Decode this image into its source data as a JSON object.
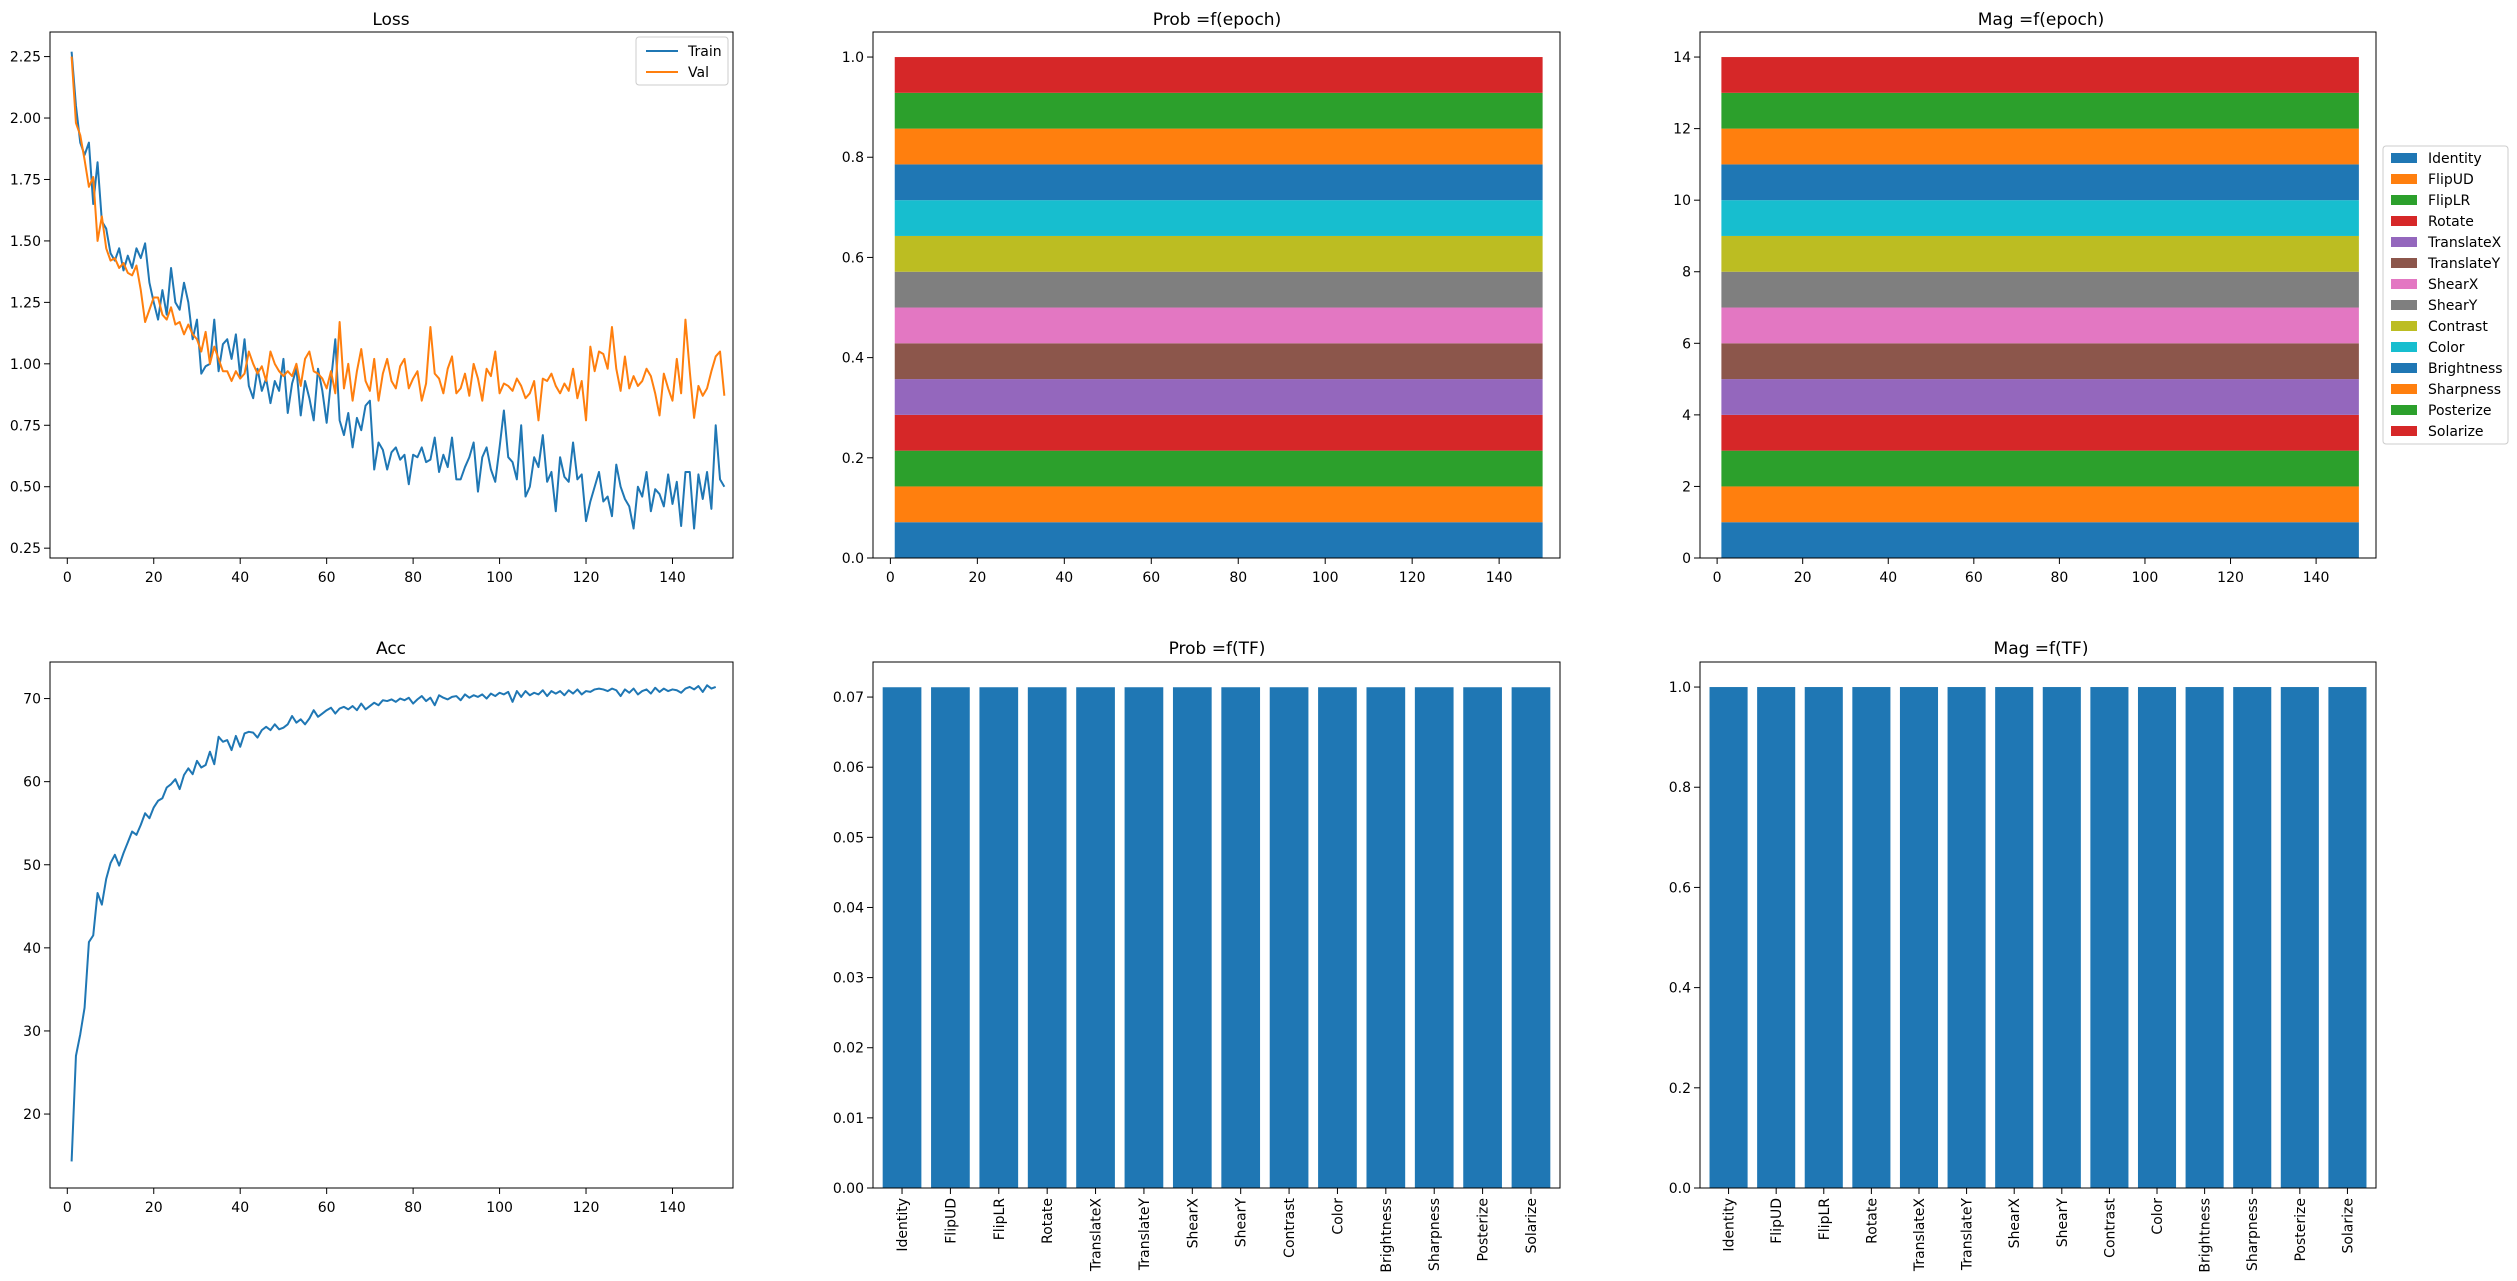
{
  "palette": [
    "#1f77b4",
    "#ff7f0e",
    "#2ca02c",
    "#d62728",
    "#9467bd",
    "#8c564b",
    "#e377c2",
    "#7f7f7f",
    "#bcbd22",
    "#17becf"
  ],
  "transforms": [
    "Identity",
    "FlipUD",
    "FlipLR",
    "Rotate",
    "TranslateX",
    "TranslateY",
    "ShearX",
    "ShearY",
    "Contrast",
    "Color",
    "Brightness",
    "Sharpness",
    "Posterize",
    "Solarize"
  ],
  "chart_data": [
    {
      "id": "loss",
      "type": "line",
      "title": "Loss",
      "xlim": [
        -4,
        154
      ],
      "ylim": [
        0.21,
        2.35
      ],
      "xticks": [
        0,
        20,
        40,
        60,
        80,
        100,
        120,
        140
      ],
      "yticks": [
        0.25,
        0.5,
        0.75,
        1.0,
        1.25,
        1.5,
        1.75,
        2.0,
        2.25
      ],
      "ytick_labels": [
        "0.25",
        "0.50",
        "0.75",
        "1.00",
        "1.25",
        "1.50",
        "1.75",
        "2.00",
        "2.25"
      ],
      "legend": {
        "position": "upper right"
      },
      "series": [
        {
          "name": "Train",
          "color": "#1f77b4",
          "x_start": 1,
          "x_step": 1,
          "values": [
            2.27,
            2.05,
            1.9,
            1.85,
            1.9,
            1.65,
            1.82,
            1.58,
            1.55,
            1.45,
            1.42,
            1.47,
            1.38,
            1.44,
            1.39,
            1.47,
            1.43,
            1.49,
            1.33,
            1.25,
            1.18,
            1.3,
            1.2,
            1.39,
            1.25,
            1.22,
            1.33,
            1.25,
            1.1,
            1.18,
            0.96,
            0.99,
            1.0,
            1.18,
            0.97,
            1.08,
            1.1,
            1.02,
            1.12,
            0.95,
            1.1,
            0.91,
            0.86,
            0.98,
            0.89,
            0.94,
            0.84,
            0.93,
            0.89,
            1.02,
            0.8,
            0.92,
            0.98,
            0.79,
            0.93,
            0.86,
            0.77,
            0.98,
            0.89,
            0.76,
            0.93,
            1.1,
            0.77,
            0.71,
            0.8,
            0.66,
            0.78,
            0.73,
            0.83,
            0.85,
            0.57,
            0.68,
            0.65,
            0.57,
            0.64,
            0.66,
            0.61,
            0.63,
            0.51,
            0.63,
            0.62,
            0.66,
            0.6,
            0.61,
            0.7,
            0.56,
            0.63,
            0.58,
            0.7,
            0.53,
            0.53,
            0.58,
            0.62,
            0.68,
            0.48,
            0.62,
            0.66,
            0.57,
            0.52,
            0.66,
            0.81,
            0.62,
            0.6,
            0.53,
            0.75,
            0.46,
            0.5,
            0.62,
            0.58,
            0.71,
            0.52,
            0.56,
            0.4,
            0.62,
            0.54,
            0.52,
            0.68,
            0.53,
            0.55,
            0.36,
            0.44,
            0.5,
            0.56,
            0.44,
            0.46,
            0.38,
            0.59,
            0.5,
            0.45,
            0.42,
            0.33,
            0.5,
            0.46,
            0.56,
            0.4,
            0.49,
            0.47,
            0.42,
            0.55,
            0.43,
            0.52,
            0.34,
            0.56,
            0.56,
            0.33,
            0.55,
            0.45,
            0.56,
            0.41,
            0.75,
            0.53,
            0.5
          ]
        },
        {
          "name": "Val",
          "color": "#ff7f0e",
          "x_start": 1,
          "x_step": 1,
          "values": [
            2.25,
            1.98,
            1.93,
            1.83,
            1.72,
            1.76,
            1.5,
            1.6,
            1.47,
            1.42,
            1.43,
            1.39,
            1.41,
            1.37,
            1.36,
            1.4,
            1.3,
            1.17,
            1.22,
            1.27,
            1.27,
            1.2,
            1.18,
            1.23,
            1.16,
            1.17,
            1.12,
            1.16,
            1.12,
            1.1,
            1.05,
            1.13,
            1.0,
            1.07,
            1.02,
            0.97,
            0.97,
            0.93,
            0.97,
            0.94,
            0.96,
            1.05,
            1.0,
            0.96,
            0.99,
            0.93,
            1.05,
            1.0,
            0.97,
            0.95,
            0.97,
            0.95,
            1.0,
            0.91,
            1.02,
            1.05,
            0.97,
            0.96,
            0.94,
            0.9,
            0.97,
            0.88,
            1.17,
            0.9,
            1.0,
            0.85,
            0.97,
            1.06,
            0.93,
            0.89,
            1.02,
            0.85,
            0.96,
            1.02,
            0.93,
            0.9,
            0.99,
            1.02,
            0.9,
            0.94,
            0.97,
            0.85,
            0.92,
            1.15,
            0.96,
            0.94,
            0.88,
            0.98,
            1.03,
            0.88,
            0.9,
            0.96,
            0.87,
            1.0,
            0.94,
            0.85,
            0.98,
            0.95,
            1.05,
            0.88,
            0.92,
            0.91,
            0.89,
            0.94,
            0.91,
            0.86,
            0.88,
            0.93,
            0.77,
            0.94,
            0.93,
            0.96,
            0.91,
            0.88,
            0.92,
            0.89,
            0.98,
            0.86,
            0.93,
            0.77,
            1.07,
            0.97,
            1.05,
            1.04,
            0.98,
            1.15,
            0.98,
            0.89,
            1.03,
            0.9,
            0.95,
            0.91,
            0.93,
            0.98,
            0.95,
            0.88,
            0.79,
            0.96,
            0.9,
            0.85,
            1.02,
            0.88,
            1.18,
            0.97,
            0.78,
            0.91,
            0.87,
            0.9,
            0.97,
            1.03,
            1.05,
            0.87
          ]
        }
      ]
    },
    {
      "id": "prob_epoch",
      "type": "area",
      "title": "Prob =f(epoch)",
      "xlim": [
        -4,
        154
      ],
      "ylim": [
        0.0,
        1.05
      ],
      "xticks": [
        0,
        20,
        40,
        60,
        80,
        100,
        120,
        140
      ],
      "yticks": [
        0.0,
        0.2,
        0.4,
        0.6,
        0.8,
        1.0
      ],
      "ytick_labels": [
        "0.0",
        "0.2",
        "0.4",
        "0.6",
        "0.8",
        "1.0"
      ],
      "x_range": [
        1,
        150
      ],
      "layer_value": 0.07142857,
      "layers": 14
    },
    {
      "id": "mag_epoch",
      "type": "area",
      "title": "Mag =f(epoch)",
      "xlim": [
        -4,
        154
      ],
      "ylim": [
        0,
        14.7
      ],
      "xticks": [
        0,
        20,
        40,
        60,
        80,
        100,
        120,
        140
      ],
      "yticks": [
        0,
        2,
        4,
        6,
        8,
        10,
        12,
        14
      ],
      "ytick_labels": [
        "0",
        "2",
        "4",
        "6",
        "8",
        "10",
        "12",
        "14"
      ],
      "x_range": [
        1,
        150
      ],
      "layer_value": 1,
      "layers": 14,
      "legend": {
        "position": "outside right"
      }
    },
    {
      "id": "acc",
      "type": "line",
      "title": "Acc",
      "xlim": [
        -4,
        154
      ],
      "ylim": [
        11.1,
        74.4
      ],
      "xticks": [
        0,
        20,
        40,
        60,
        80,
        100,
        120,
        140
      ],
      "yticks": [
        20,
        30,
        40,
        50,
        60,
        70
      ],
      "ytick_labels": [
        "20",
        "30",
        "40",
        "50",
        "60",
        "70"
      ],
      "series": [
        {
          "color": "#1f77b4",
          "x_start": 1,
          "x_step": 1,
          "values": [
            14.3,
            27.0,
            29.6,
            32.8,
            40.7,
            41.5,
            46.6,
            45.2,
            48.3,
            50.2,
            51.2,
            49.9,
            51.4,
            52.7,
            54.0,
            53.6,
            54.8,
            56.2,
            55.6,
            56.9,
            57.7,
            58.0,
            59.3,
            59.7,
            60.3,
            59.1,
            60.8,
            61.6,
            60.9,
            62.5,
            61.7,
            62.0,
            63.6,
            62.1,
            65.4,
            64.8,
            65.0,
            63.8,
            65.5,
            64.2,
            65.8,
            66.0,
            65.9,
            65.3,
            66.2,
            66.6,
            66.2,
            66.9,
            66.3,
            66.5,
            66.9,
            67.9,
            67.1,
            67.5,
            66.9,
            67.6,
            68.6,
            67.8,
            68.2,
            68.6,
            68.9,
            68.2,
            68.8,
            69.0,
            68.7,
            69.1,
            68.6,
            69.4,
            68.7,
            69.1,
            69.5,
            69.2,
            69.8,
            69.7,
            69.9,
            69.6,
            70.0,
            69.8,
            70.1,
            69.4,
            69.9,
            70.3,
            69.7,
            70.1,
            69.2,
            70.4,
            70.1,
            69.9,
            70.2,
            70.3,
            69.8,
            70.5,
            70.1,
            70.4,
            70.2,
            70.5,
            70.0,
            70.6,
            70.3,
            70.7,
            70.5,
            70.8,
            69.6,
            70.9,
            70.2,
            70.9,
            70.4,
            70.7,
            70.5,
            71.0,
            70.3,
            70.9,
            70.6,
            70.9,
            70.4,
            71.0,
            70.6,
            71.1,
            70.5,
            70.9,
            70.8,
            71.1,
            71.2,
            71.1,
            70.9,
            71.2,
            71.0,
            70.3,
            71.1,
            70.7,
            71.2,
            70.5,
            70.9,
            71.1,
            70.6,
            71.3,
            70.8,
            71.2,
            70.9,
            71.1,
            71.0,
            70.7,
            71.2,
            71.4,
            71.1,
            71.5,
            70.8,
            71.6,
            71.2,
            71.4
          ]
        }
      ]
    },
    {
      "id": "prob_tf",
      "type": "bar",
      "title": "Prob =f(TF)",
      "ylim": [
        0,
        0.075
      ],
      "yticks": [
        0.0,
        0.01,
        0.02,
        0.03,
        0.04,
        0.05,
        0.06,
        0.07
      ],
      "ytick_labels": [
        "0.00",
        "0.01",
        "0.02",
        "0.03",
        "0.04",
        "0.05",
        "0.06",
        "0.07"
      ],
      "categories": [
        "Identity",
        "FlipUD",
        "FlipLR",
        "Rotate",
        "TranslateX",
        "TranslateY",
        "ShearX",
        "ShearY",
        "Contrast",
        "Color",
        "Brightness",
        "Sharpness",
        "Posterize",
        "Solarize"
      ],
      "values": [
        0.0714,
        0.0714,
        0.0714,
        0.0714,
        0.0714,
        0.0714,
        0.0714,
        0.0714,
        0.0714,
        0.0714,
        0.0714,
        0.0714,
        0.0714,
        0.0714
      ],
      "color": "#1f77b4"
    },
    {
      "id": "mag_tf",
      "type": "bar",
      "title": "Mag =f(TF)",
      "ylim": [
        0,
        1.05
      ],
      "yticks": [
        0.0,
        0.2,
        0.4,
        0.6,
        0.8,
        1.0
      ],
      "ytick_labels": [
        "0.0",
        "0.2",
        "0.4",
        "0.6",
        "0.8",
        "1.0"
      ],
      "categories": [
        "Identity",
        "FlipUD",
        "FlipLR",
        "Rotate",
        "TranslateX",
        "TranslateY",
        "ShearX",
        "ShearY",
        "Contrast",
        "Color",
        "Brightness",
        "Sharpness",
        "Posterize",
        "Solarize"
      ],
      "values": [
        1.0,
        1.0,
        1.0,
        1.0,
        1.0,
        1.0,
        1.0,
        1.0,
        1.0,
        1.0,
        1.0,
        1.0,
        1.0,
        1.0
      ],
      "color": "#1f77b4"
    }
  ]
}
